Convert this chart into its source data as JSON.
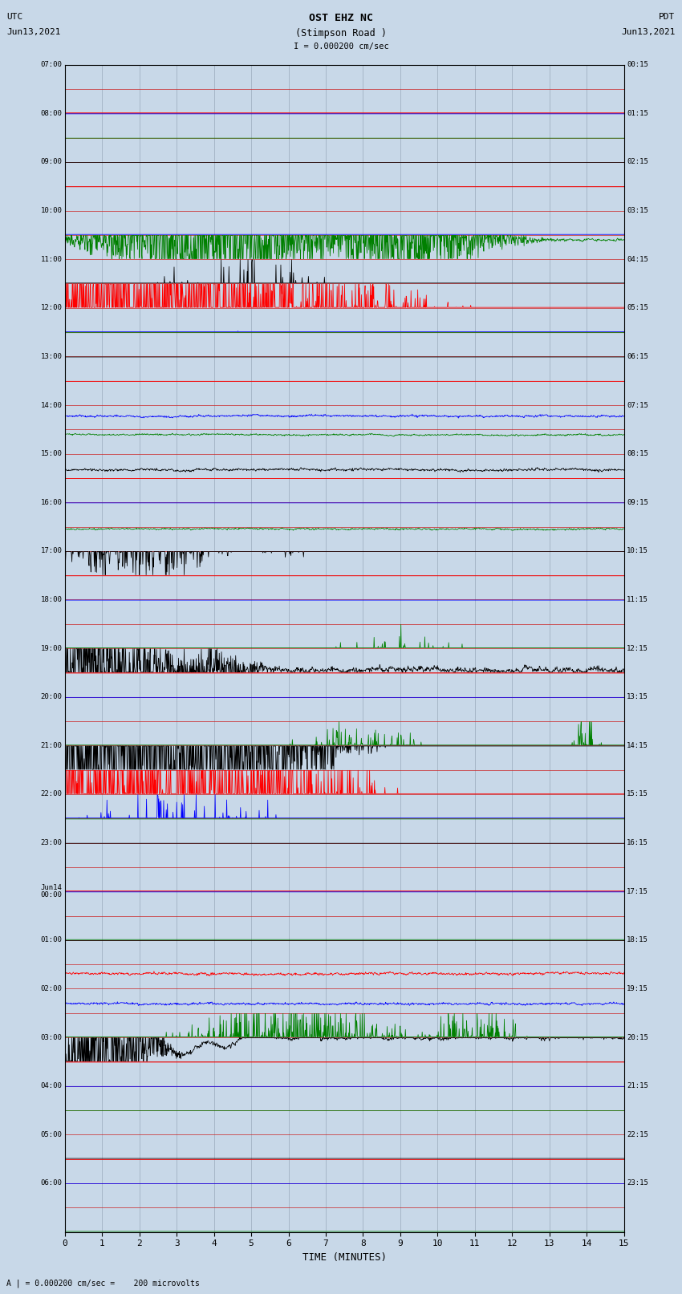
{
  "title_line1": "OST EHZ NC",
  "title_line2": "(Stimpson Road )",
  "scale_label": "I = 0.000200 cm/sec",
  "left_label_line1": "UTC",
  "left_label_line2": "Jun13,2021",
  "right_label_line1": "PDT",
  "right_label_line2": "Jun13,2021",
  "bottom_label": "TIME (MINUTES)",
  "bottom_note": "A | = 0.000200 cm/sec =    200 microvolts",
  "fig_width": 8.5,
  "fig_height": 16.13,
  "dpi": 100,
  "n_rows": 48,
  "x_min": 0,
  "x_max": 15,
  "x_ticks": [
    0,
    1,
    2,
    3,
    4,
    5,
    6,
    7,
    8,
    9,
    10,
    11,
    12,
    13,
    14,
    15
  ],
  "background_color": "#c8d8e8",
  "plot_bg_color": "#c8d8e8",
  "utc_times": [
    "07:00",
    "",
    "08:00",
    "",
    "09:00",
    "",
    "10:00",
    "",
    "11:00",
    "",
    "12:00",
    "",
    "13:00",
    "",
    "14:00",
    "",
    "15:00",
    "",
    "16:00",
    "",
    "17:00",
    "",
    "18:00",
    "",
    "19:00",
    "",
    "20:00",
    "",
    "21:00",
    "",
    "22:00",
    "",
    "23:00",
    "",
    "Jun14\n00:00",
    "",
    "01:00",
    "",
    "02:00",
    "",
    "03:00",
    "",
    "04:00",
    "",
    "05:00",
    "",
    "06:00",
    ""
  ],
  "pdt_times": [
    "00:15",
    "",
    "01:15",
    "",
    "02:15",
    "",
    "03:15",
    "",
    "04:15",
    "",
    "05:15",
    "",
    "06:15",
    "",
    "07:15",
    "",
    "08:15",
    "",
    "09:15",
    "",
    "10:15",
    "",
    "11:15",
    "",
    "12:15",
    "",
    "13:15",
    "",
    "14:15",
    "",
    "15:15",
    "",
    "16:15",
    "",
    "17:15",
    "",
    "18:15",
    "",
    "19:15",
    "",
    "20:15",
    "",
    "21:15",
    "",
    "22:15",
    "",
    "23:15",
    ""
  ],
  "row_colors_pattern": [
    "black",
    "red",
    "blue",
    "green"
  ],
  "seed": 42,
  "vertical_grid_color": "#9aaabb",
  "row_separator_color": "#cc0000",
  "hour_marker_color": "#888888"
}
